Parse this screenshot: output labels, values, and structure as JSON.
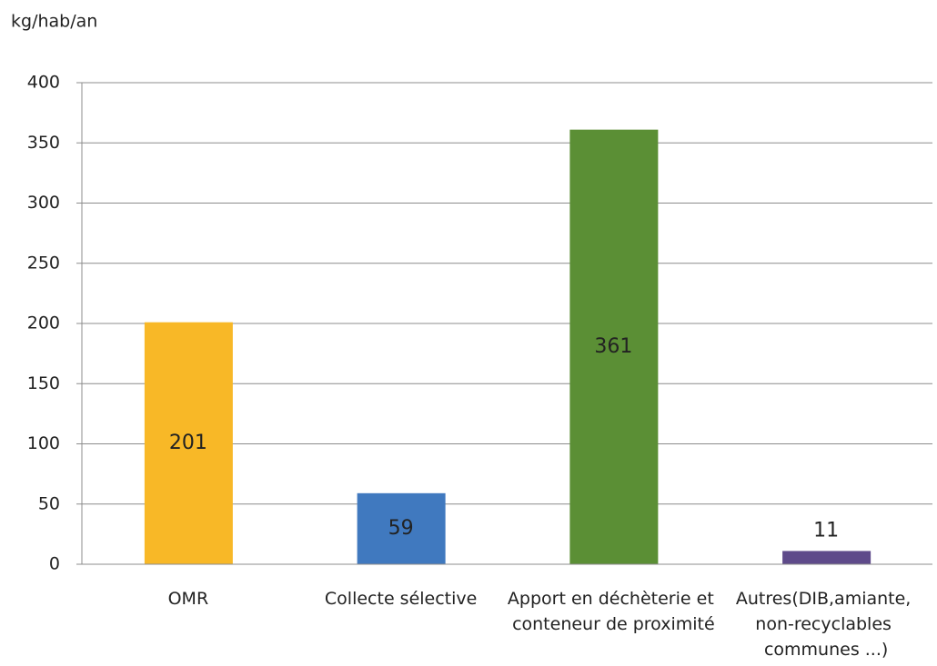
{
  "chart_data": {
    "type": "bar",
    "y_axis_label": "kg/hab/an",
    "categories": [
      "OMR",
      "Collecte sélective",
      "Apport en déchèterie et conteneur de proximité",
      "Autres(DIB,amiante, non-recyclables communes ...)"
    ],
    "values": [
      201,
      59,
      361,
      11
    ],
    "colors": [
      "#f8b827",
      "#4079bf",
      "#5b8f35",
      "#5e4a8a"
    ],
    "ylim": [
      0,
      400
    ],
    "yticks": [
      0,
      50,
      100,
      150,
      200,
      250,
      300,
      350,
      400
    ],
    "grid": true
  }
}
